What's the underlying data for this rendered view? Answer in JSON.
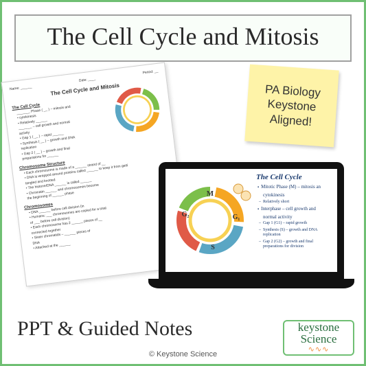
{
  "title": "The Cell Cycle and Mitosis",
  "sticky_note": "PA Biology Keystone Aligned!",
  "bottom_label": "PPT & Guided Notes",
  "copyright": "© Keystone Science",
  "brand": {
    "line1": "keystone",
    "line2": "Science",
    "dna": "∿∿∿"
  },
  "colors": {
    "frame_green": "#6fbf73",
    "sticky_bg": "#fef3a8",
    "ring_orange": "#f5a623",
    "ring_blue": "#5aa6c4",
    "ring_green": "#7cbf4a",
    "ring_red": "#e05a47",
    "ring_yellow": "#f7d154",
    "slide_text": "#1a3a6e"
  },
  "worksheet": {
    "header_left": "Name: ______",
    "header_mid": "Date: ____",
    "header_right": "Period: __",
    "title": "The Cell Cycle and Mitosis",
    "sections": [
      {
        "head": "The Cell Cycle",
        "lines": [
          "_______ Phase ( __ ) – mitosis and",
          "• cytokinesis",
          "• Relatively ______",
          "_______ – cell growth and normal",
          "activity",
          "• Gap 1 ( __ ) – rapid ______",
          "• Synthesis ( __ ) – growth and DNA",
          "  replication",
          "• Gap 2 ( __ ) – growth and final",
          "  preparations for ______"
        ]
      },
      {
        "head": "Chromosome Structure",
        "lines": [
          "• Each chromosome is made of a ______ strand of __",
          "• DNA is wrapped around proteins called ______ to keep it from getti",
          "  tangled and knotted",
          "• The histone/DNA ______ is called ______",
          "• Chromatin ______ and chromosomes become",
          "  the beginning of ______ phase"
        ]
      },
      {
        "head": "Chromosomes",
        "lines": [
          "• DNA ______ before cell division (in",
          "• Humans: ___ chromosomes are copied for a total",
          "  of ___ before cell division)",
          "• Each chromosome has 2 ______ pieces of __",
          "  connected together",
          "  • Sister chromatids – ______ pieces of",
          "    DNA",
          "  • Attached at the ______"
        ]
      }
    ]
  },
  "slide": {
    "title": "The Cell Cycle",
    "bullets": [
      {
        "t": "main",
        "text": "Mitotic Phase (M) – mitosis an"
      },
      {
        "t": "plain",
        "text": "cytokinesis"
      },
      {
        "t": "sub",
        "text": "Relatively short"
      },
      {
        "t": "main",
        "text": "Interphase – cell growth and"
      },
      {
        "t": "plain",
        "text": "normal activity"
      },
      {
        "t": "sub",
        "text": "Gap 1 (G1) – rapid growth"
      },
      {
        "t": "sub",
        "text": "Synthesis (S) – growth and DNA replication"
      },
      {
        "t": "sub",
        "text": "Gap 2 (G2) – growth and final preparations for division"
      }
    ],
    "ring_labels": {
      "M": "M",
      "G1": "G₁",
      "S": "S",
      "G2": "G₂"
    }
  }
}
